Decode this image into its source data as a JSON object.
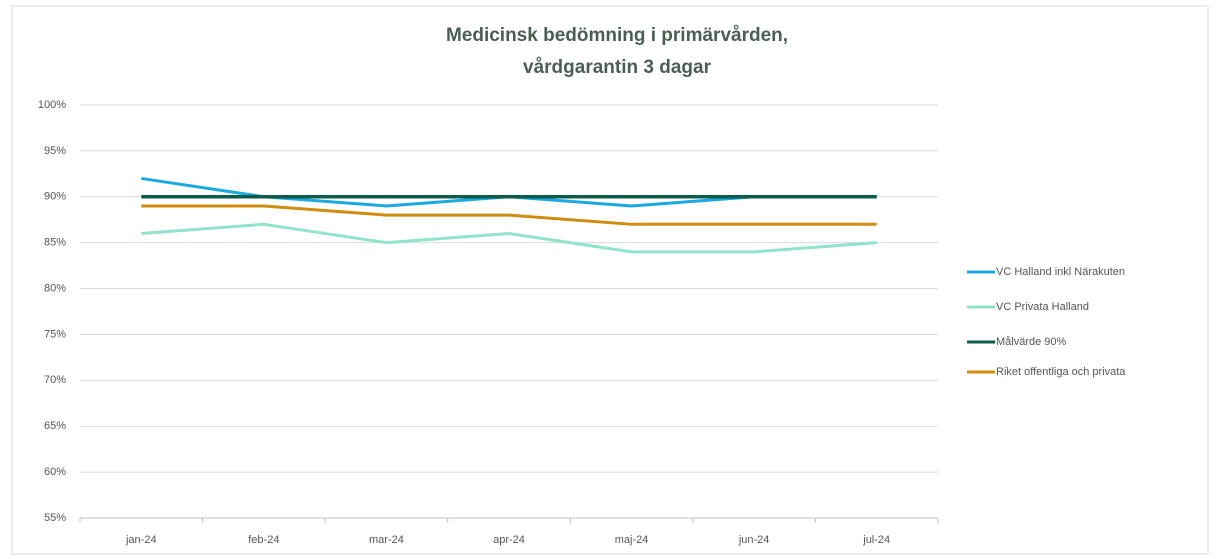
{
  "chart_data": {
    "type": "line",
    "title": [
      "Medicinsk bedömning i primärvården,",
      "vårdgarantin 3 dagar"
    ],
    "categories": [
      "jan-24",
      "feb-24",
      "mar-24",
      "apr-24",
      "maj-24",
      "jun-24",
      "jul-24"
    ],
    "series": [
      {
        "name": "VC Halland inkl Närakuten",
        "color": "#1aa9e0",
        "values": [
          92,
          90,
          89,
          90,
          89,
          90,
          90
        ]
      },
      {
        "name": "VC Privata Halland",
        "color": "#8fe3cf",
        "values": [
          86,
          87,
          85,
          86,
          84,
          84,
          85
        ]
      },
      {
        "name": "Målvärde 90%",
        "color": "#0d5c4a",
        "values": [
          90,
          90,
          90,
          90,
          90,
          90,
          90
        ]
      },
      {
        "name": "Riket offentliga och privata",
        "color": "#d08c0e",
        "values": [
          89,
          89,
          88,
          88,
          87,
          87,
          87
        ]
      }
    ],
    "ylim": [
      55,
      100
    ],
    "yticks": [
      {
        "value": 55,
        "label": "55%"
      },
      {
        "value": 60,
        "label": "60%"
      },
      {
        "value": 65,
        "label": "65%"
      },
      {
        "value": 70,
        "label": "70%"
      },
      {
        "value": 75,
        "label": "75%"
      },
      {
        "value": 80,
        "label": "80%"
      },
      {
        "value": 85,
        "label": "85%"
      },
      {
        "value": 90,
        "label": "90%"
      },
      {
        "value": 95,
        "label": "95%"
      },
      {
        "value": 100,
        "label": "100%"
      }
    ],
    "grid": true,
    "legend": "right"
  }
}
